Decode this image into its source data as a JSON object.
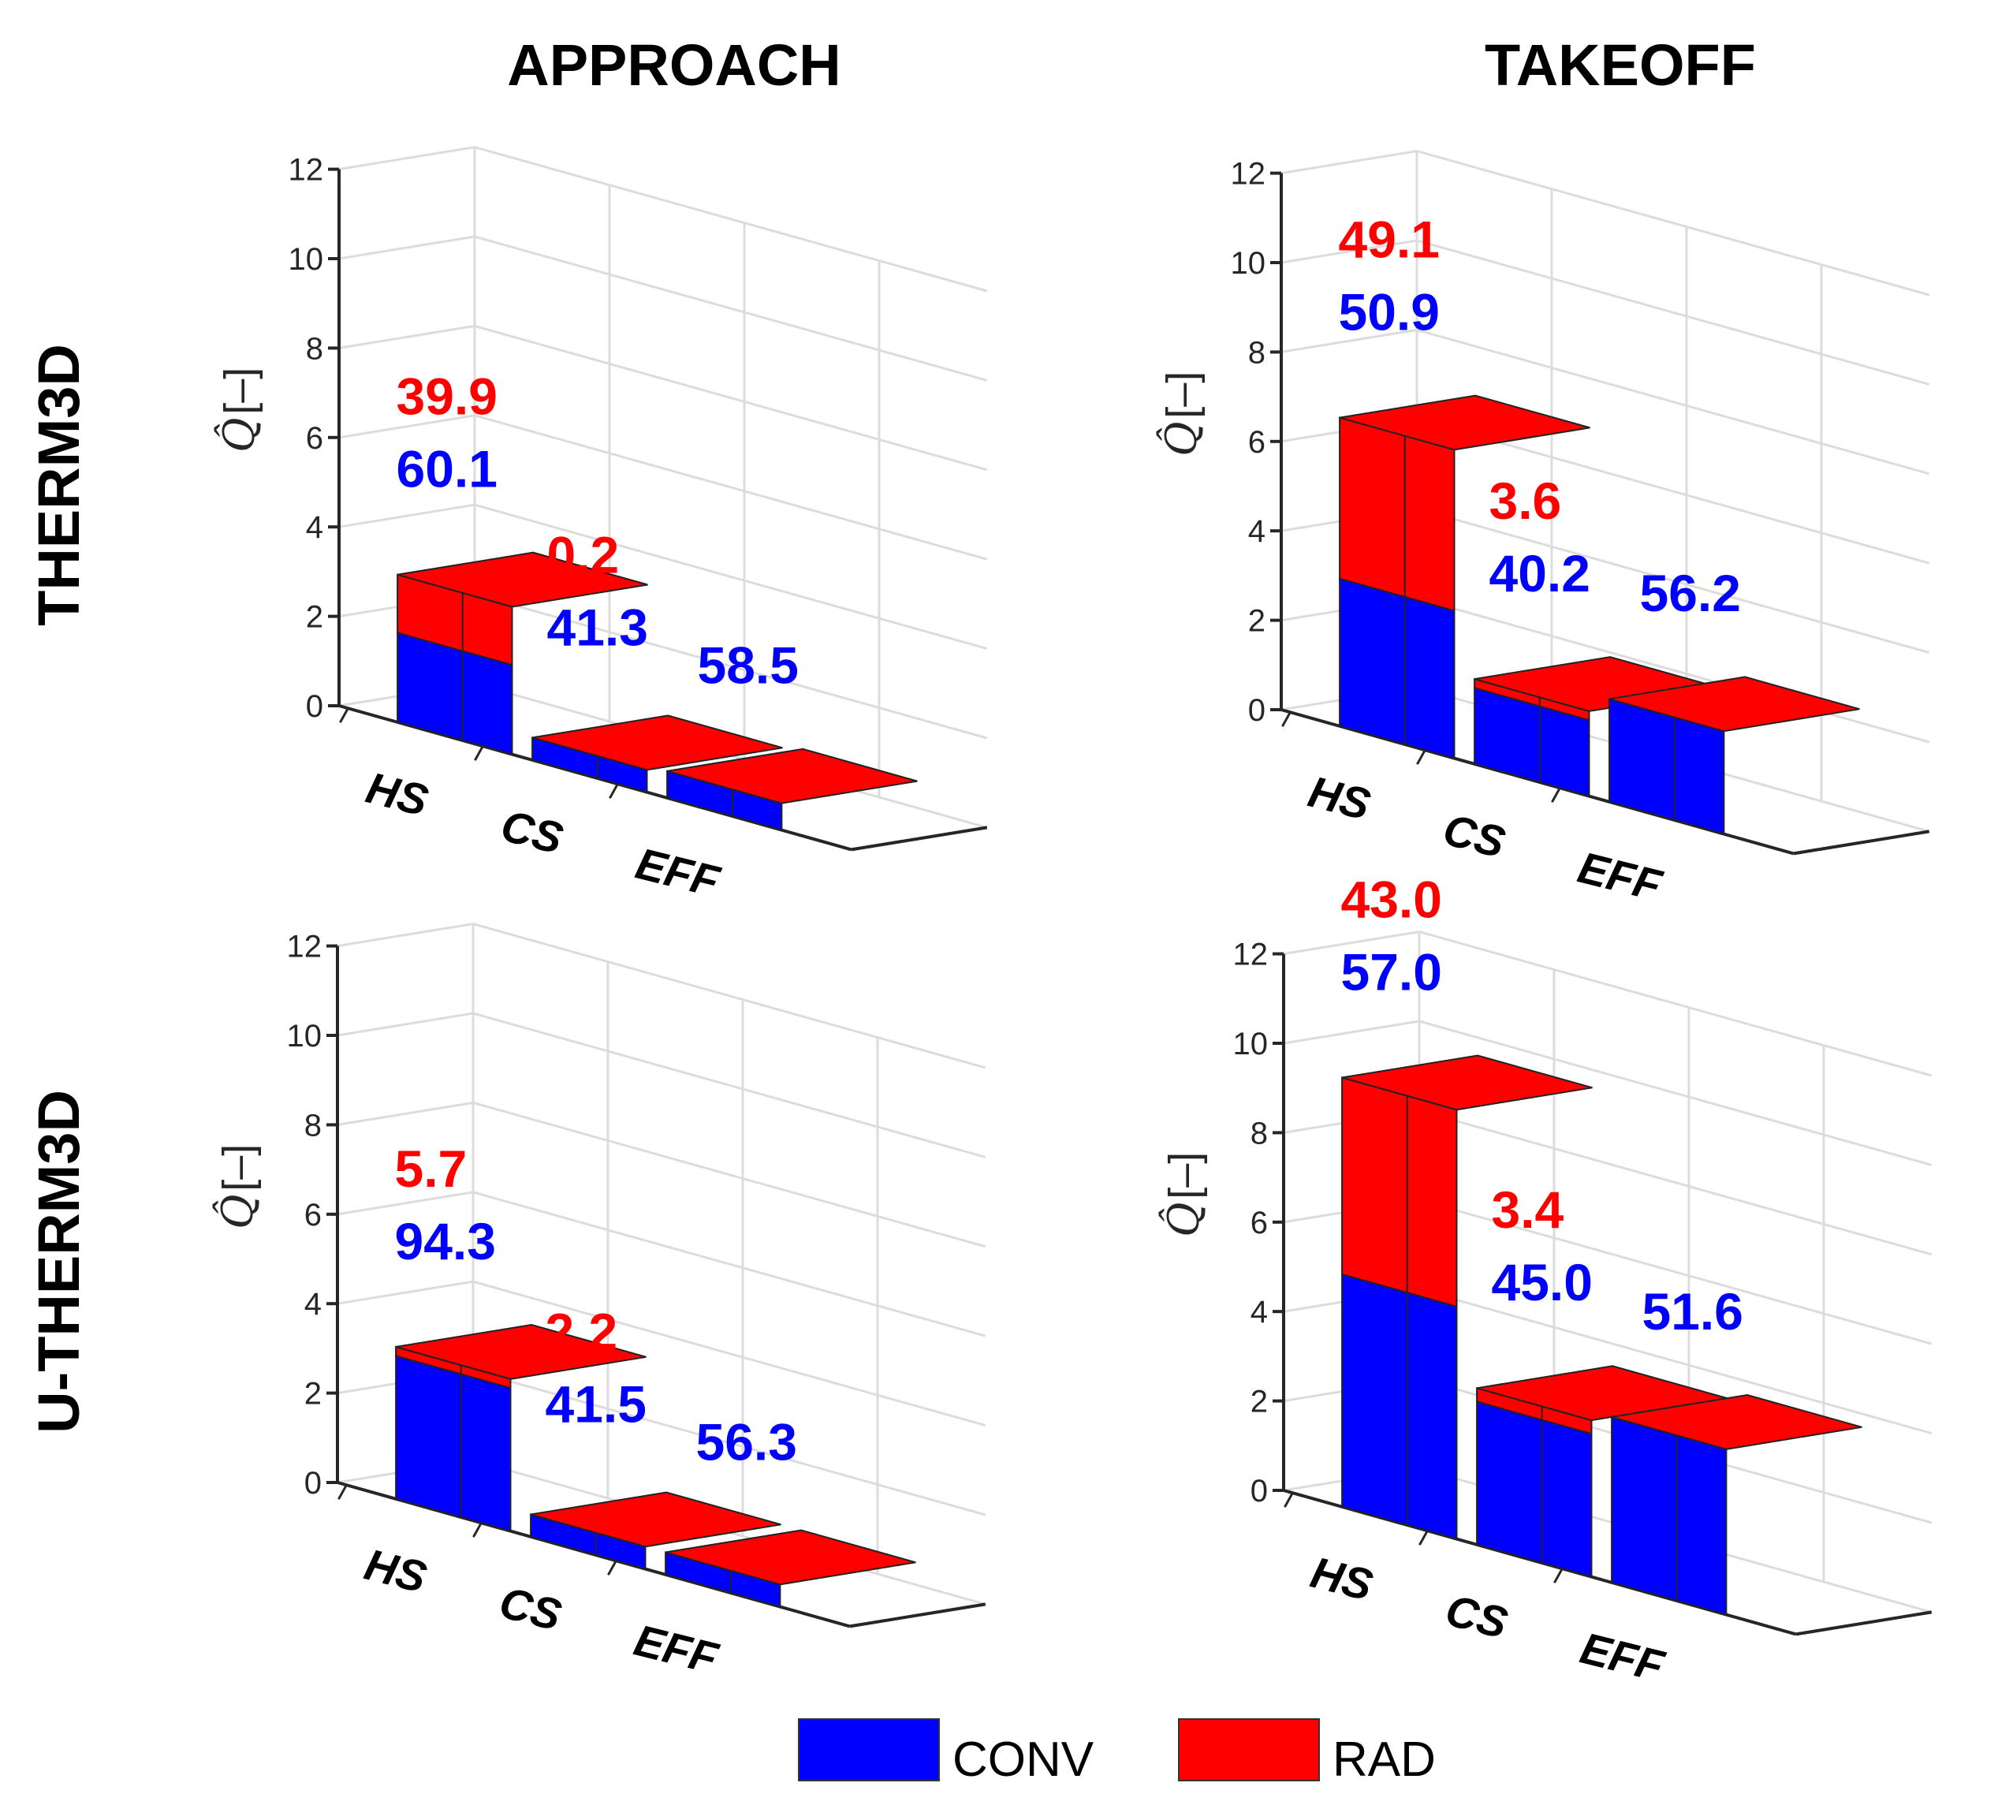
{
  "figure": {
    "columns": [
      "APPROACH",
      "TAKEOFF"
    ],
    "rows": [
      "THERM3D",
      "U-THERM3D"
    ],
    "legend": [
      {
        "label": "CONV",
        "color": "#0000ff"
      },
      {
        "label": "RAD",
        "color": "#ff0000"
      }
    ],
    "colors": {
      "conv": "#0000ff",
      "rad": "#ff0000",
      "conv_side": "#0000e6",
      "rad_side": "#e60000"
    }
  },
  "chart_data": [
    {
      "type": "bar",
      "stacked": true,
      "column": "APPROACH",
      "row": "THERM3D",
      "ylabel": "Q̂",
      "ylabel_unit": "[–]",
      "ylim": [
        0,
        12
      ],
      "yticks": [
        "0",
        "2",
        "4",
        "6",
        "8",
        "10",
        "12"
      ],
      "categories": [
        "HS",
        "CS",
        "EFF"
      ],
      "series": [
        {
          "name": "CONV",
          "values": [
            2.0,
            0.5,
            0.6
          ]
        },
        {
          "name": "RAD",
          "values": [
            1.3,
            0.0,
            0.0
          ]
        }
      ],
      "annotations": [
        {
          "rad": "39.9",
          "conv": "60.1"
        },
        {
          "rad": "0.2",
          "conv": "41.3"
        },
        {
          "rad": "",
          "conv": "58.5"
        }
      ]
    },
    {
      "type": "bar",
      "stacked": true,
      "column": "TAKEOFF",
      "row": "THERM3D",
      "ylabel": "Q̂",
      "ylabel_unit": "[–]",
      "ylim": [
        0,
        12
      ],
      "yticks": [
        "0",
        "2",
        "4",
        "6",
        "8",
        "10",
        "12"
      ],
      "categories": [
        "HS",
        "CS",
        "EFF"
      ],
      "series": [
        {
          "name": "CONV",
          "values": [
            3.3,
            1.7,
            2.3
          ]
        },
        {
          "name": "RAD",
          "values": [
            3.6,
            0.2,
            0.0
          ]
        }
      ],
      "annotations": [
        {
          "rad": "49.1",
          "conv": "50.9"
        },
        {
          "rad": "3.6",
          "conv": "40.2"
        },
        {
          "rad": "",
          "conv": "56.2"
        }
      ]
    },
    {
      "type": "bar",
      "stacked": true,
      "column": "APPROACH",
      "row": "U-THERM3D",
      "ylabel": "Q̂",
      "ylabel_unit": "[–]",
      "ylim": [
        0,
        12
      ],
      "yticks": [
        "0",
        "2",
        "4",
        "6",
        "8",
        "10",
        "12"
      ],
      "categories": [
        "HS",
        "CS",
        "EFF"
      ],
      "series": [
        {
          "name": "CONV",
          "values": [
            3.2,
            0.5,
            0.5
          ]
        },
        {
          "name": "RAD",
          "values": [
            0.2,
            0.0,
            0.0
          ]
        }
      ],
      "annotations": [
        {
          "rad": "5.7",
          "conv": "94.3"
        },
        {
          "rad": "2.2",
          "conv": "41.5"
        },
        {
          "rad": "",
          "conv": "56.3"
        }
      ]
    },
    {
      "type": "bar",
      "stacked": true,
      "column": "TAKEOFF",
      "row": "U-THERM3D",
      "ylabel": "Q̂",
      "ylabel_unit": "[–]",
      "ylim": [
        0,
        12
      ],
      "yticks": [
        "0",
        "2",
        "4",
        "6",
        "8",
        "10",
        "12"
      ],
      "categories": [
        "HS",
        "CS",
        "EFF"
      ],
      "series": [
        {
          "name": "CONV",
          "values": [
            5.2,
            3.2,
            3.7
          ]
        },
        {
          "name": "RAD",
          "values": [
            4.4,
            0.3,
            0.0
          ]
        }
      ],
      "annotations": [
        {
          "rad": "43.0",
          "conv": "57.0"
        },
        {
          "rad": "3.4",
          "conv": "45.0"
        },
        {
          "rad": "",
          "conv": "51.6"
        }
      ]
    }
  ]
}
